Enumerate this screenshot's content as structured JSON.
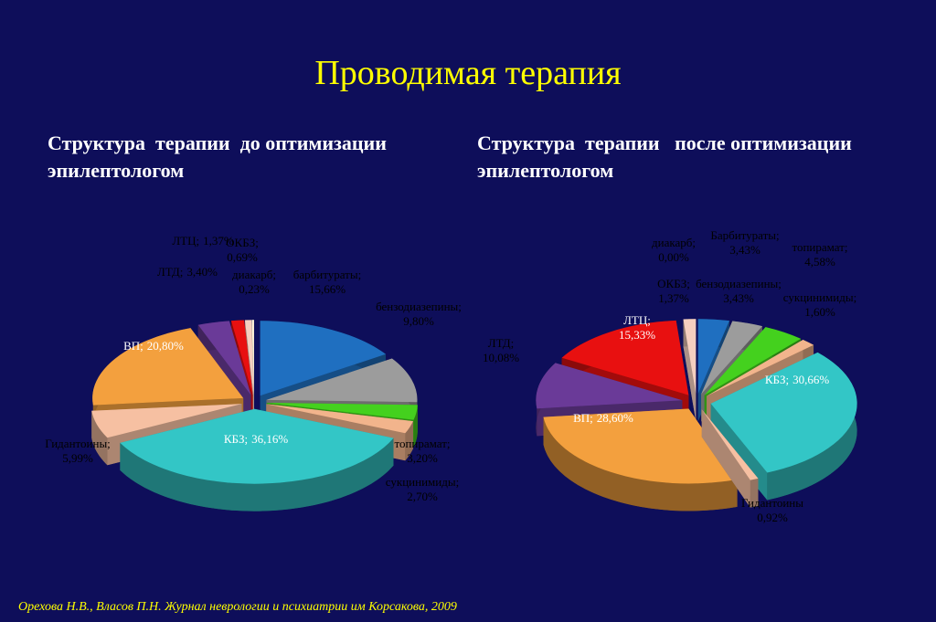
{
  "title": "Проводимая терапия",
  "footnote": "Орехова Н.В., Власов П.Н. Журнал неврологии и психиатрии  им Корсакова, 2009",
  "chart_data": [
    {
      "type": "pie",
      "title": "Структура  терапии  до оптимизации эпилептологом",
      "categories": [
        "барбитураты;",
        "бензодиазепины;",
        "топирамат;",
        "сукцинимиды;",
        "КБЗ;",
        "Гидантоины;",
        "ВП;",
        "ЛТД;",
        "ЛТЦ;",
        "ОКБЗ;",
        "диакарб;"
      ],
      "values": [
        15.66,
        9.8,
        3.2,
        2.7,
        36.16,
        5.99,
        20.8,
        3.4,
        1.37,
        0.69,
        0.23
      ],
      "value_labels": [
        "15,66%",
        "9,80%",
        "3,20%",
        "2,70%",
        "36,16%",
        "5,99%",
        "20,80%",
        "3,40%",
        "1,37%",
        "0,69%",
        "0,23%"
      ],
      "colors": [
        "#1f6fc0",
        "#9c9c9c",
        "#44d11e",
        "#f2b48c",
        "#33c6c6",
        "#f6c0a2",
        "#f3a03e",
        "#6a3a98",
        "#e81010",
        "#f5cfc0",
        "#fff4dc"
      ]
    },
    {
      "type": "pie",
      "title": "Структура  терапии   после оптимизации эпилептологом",
      "categories": [
        "Барбитураты;",
        "бензодиазепины;",
        "топирамат;",
        "сукцинимиды;",
        "КБЗ;",
        "Гидантоины",
        "ВП;",
        "ЛТД;",
        "ЛТЦ;",
        "ОКБЗ;",
        "диакарб;"
      ],
      "values": [
        3.43,
        3.43,
        4.58,
        1.6,
        30.66,
        0.92,
        28.6,
        10.08,
        15.33,
        1.37,
        0.0
      ],
      "value_labels": [
        "3,43%",
        "3,43%",
        "4,58%",
        "1,60%",
        "30,66%",
        "0,92%",
        "28,60%",
        "10,08%",
        "15,33%",
        "1,37%",
        "0,00%"
      ],
      "colors": [
        "#1f6fc0",
        "#9c9c9c",
        "#44d11e",
        "#f2b48c",
        "#33c6c6",
        "#f6c0a2",
        "#f3a03e",
        "#6a3a98",
        "#e81010",
        "#f5cfc0",
        "#fff4dc"
      ]
    }
  ]
}
